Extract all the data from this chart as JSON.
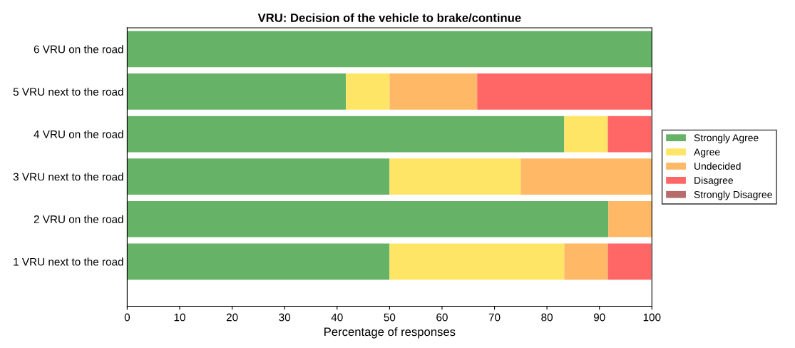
{
  "chart_data": {
    "type": "bar",
    "orientation": "horizontal",
    "stacked": true,
    "title": "VRU: Decision of the vehicle to brake/continue",
    "xlabel": "Percentage of responses",
    "categories": [
      "6 VRU on the road",
      "5 VRU next to the road",
      "4 VRU on the road",
      "3 VRU next to the road",
      "2 VRU on the road",
      "1 VRU next to the road"
    ],
    "series": [
      {
        "name": "Strongly Agree",
        "color": "#66b266",
        "values": [
          100,
          41.7,
          83.3,
          50,
          91.7,
          50
        ]
      },
      {
        "name": "Agree",
        "color": "#ffe566",
        "values": [
          0,
          8.3,
          8.3,
          25,
          0,
          33.3
        ]
      },
      {
        "name": "Undecided",
        "color": "#ffb866",
        "values": [
          0,
          16.7,
          0,
          25,
          8.3,
          8.3
        ]
      },
      {
        "name": "Disagree",
        "color": "#ff6666",
        "values": [
          0,
          33.3,
          8.3,
          0,
          0,
          8.3
        ]
      },
      {
        "name": "Strongly Disagree",
        "color": "#b86b6b",
        "values": [
          0,
          0,
          0,
          0,
          0,
          0
        ]
      }
    ],
    "xlim": [
      0,
      100
    ],
    "xticks": [
      0,
      10,
      20,
      30,
      40,
      50,
      60,
      70,
      80,
      90,
      100
    ],
    "grid": false,
    "legend": "right"
  }
}
